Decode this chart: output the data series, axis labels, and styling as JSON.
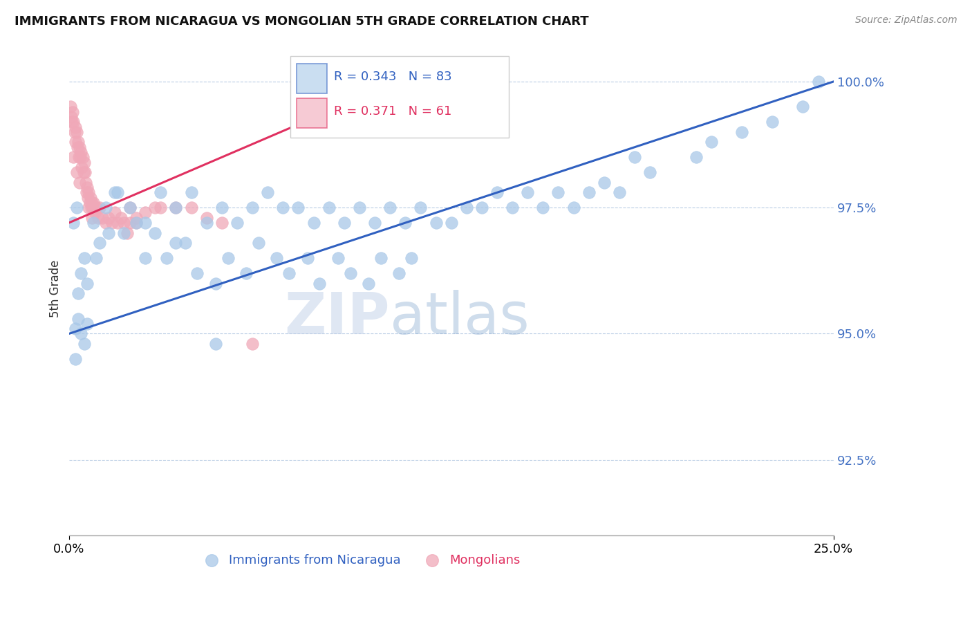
{
  "title": "IMMIGRANTS FROM NICARAGUA VS MONGOLIAN 5TH GRADE CORRELATION CHART",
  "source": "Source: ZipAtlas.com",
  "ylabel": "5th Grade",
  "xmin": 0.0,
  "xmax": 25.0,
  "ymin": 91.0,
  "ymax": 100.8,
  "blue_R": 0.343,
  "blue_N": 83,
  "pink_R": 0.371,
  "pink_N": 61,
  "blue_color": "#a8c8e8",
  "pink_color": "#f0a8b8",
  "blue_line_color": "#3060c0",
  "pink_line_color": "#e03060",
  "legend_blue_label": "Immigrants from Nicaragua",
  "legend_pink_label": "Mongolians",
  "watermark_zip": "ZIP",
  "watermark_atlas": "atlas",
  "background_color": "#ffffff",
  "ytick_vals": [
    92.5,
    95.0,
    97.5,
    100.0
  ],
  "ytick_labels": [
    "92.5%",
    "95.0%",
    "97.5%",
    "100.0%"
  ],
  "blue_scatter_x": [
    0.2,
    0.3,
    0.4,
    0.5,
    0.6,
    0.3,
    0.4,
    0.5,
    0.2,
    0.6,
    0.8,
    1.0,
    1.2,
    0.9,
    1.5,
    1.3,
    2.0,
    2.5,
    1.8,
    3.0,
    2.2,
    3.5,
    2.8,
    4.0,
    3.2,
    4.5,
    3.8,
    5.0,
    4.2,
    5.5,
    4.8,
    6.0,
    5.2,
    6.5,
    5.8,
    7.0,
    6.2,
    7.5,
    6.8,
    8.0,
    7.2,
    8.5,
    7.8,
    9.0,
    8.2,
    9.5,
    8.8,
    10.0,
    9.2,
    10.5,
    9.8,
    11.0,
    10.2,
    11.5,
    10.8,
    12.0,
    11.2,
    13.0,
    12.5,
    14.0,
    13.5,
    15.0,
    14.5,
    16.0,
    15.5,
    17.0,
    16.5,
    18.0,
    17.5,
    19.0,
    18.5,
    20.5,
    21.0,
    22.0,
    23.0,
    24.0,
    24.5,
    0.15,
    0.25,
    1.6,
    2.5,
    3.5,
    4.8
  ],
  "blue_scatter_y": [
    95.1,
    95.3,
    95.0,
    94.8,
    95.2,
    95.8,
    96.2,
    96.5,
    94.5,
    96.0,
    97.2,
    96.8,
    97.5,
    96.5,
    97.8,
    97.0,
    97.5,
    97.2,
    97.0,
    97.8,
    97.2,
    97.5,
    97.0,
    97.8,
    96.5,
    97.2,
    96.8,
    97.5,
    96.2,
    97.2,
    96.0,
    97.5,
    96.5,
    97.8,
    96.2,
    97.5,
    96.8,
    97.5,
    96.5,
    97.2,
    96.2,
    97.5,
    96.5,
    97.2,
    96.0,
    97.5,
    96.5,
    97.2,
    96.2,
    97.5,
    96.0,
    97.2,
    96.5,
    97.5,
    96.2,
    97.2,
    96.5,
    97.5,
    97.2,
    97.8,
    97.5,
    97.8,
    97.5,
    97.8,
    97.5,
    97.8,
    97.5,
    97.8,
    98.0,
    98.2,
    98.5,
    98.5,
    98.8,
    99.0,
    99.2,
    99.5,
    100.0,
    97.2,
    97.5,
    97.8,
    96.5,
    96.8,
    94.8
  ],
  "pink_scatter_x": [
    0.05,
    0.08,
    0.1,
    0.12,
    0.15,
    0.18,
    0.2,
    0.22,
    0.25,
    0.28,
    0.3,
    0.32,
    0.35,
    0.38,
    0.4,
    0.42,
    0.45,
    0.48,
    0.5,
    0.52,
    0.55,
    0.58,
    0.6,
    0.62,
    0.65,
    0.68,
    0.7,
    0.72,
    0.75,
    0.78,
    0.8,
    0.85,
    0.9,
    0.95,
    1.0,
    1.1,
    1.2,
    1.3,
    1.4,
    1.5,
    1.6,
    1.7,
    1.8,
    1.9,
    2.0,
    2.2,
    2.5,
    2.8,
    3.0,
    3.5,
    4.0,
    4.5,
    5.0,
    0.15,
    0.25,
    0.35,
    0.65,
    0.75,
    2.0,
    2.2,
    6.0
  ],
  "pink_scatter_y": [
    99.5,
    99.3,
    99.2,
    99.4,
    99.2,
    99.0,
    99.1,
    98.8,
    99.0,
    98.7,
    98.8,
    98.5,
    98.7,
    98.5,
    98.6,
    98.3,
    98.5,
    98.2,
    98.4,
    98.2,
    98.0,
    97.8,
    97.9,
    97.7,
    97.8,
    97.6,
    97.7,
    97.5,
    97.6,
    97.5,
    97.6,
    97.4,
    97.5,
    97.3,
    97.5,
    97.3,
    97.2,
    97.3,
    97.2,
    97.4,
    97.2,
    97.3,
    97.2,
    97.0,
    97.2,
    97.2,
    97.4,
    97.5,
    97.5,
    97.5,
    97.5,
    97.3,
    97.2,
    98.5,
    98.2,
    98.0,
    97.5,
    97.3,
    97.5,
    97.3,
    94.8
  ],
  "blue_line_x0": 0.0,
  "blue_line_x1": 25.0,
  "blue_line_y0": 95.0,
  "blue_line_y1": 100.0,
  "pink_line_x0": 0.0,
  "pink_line_x1": 10.0,
  "pink_line_y0": 97.2,
  "pink_line_y1": 99.8
}
